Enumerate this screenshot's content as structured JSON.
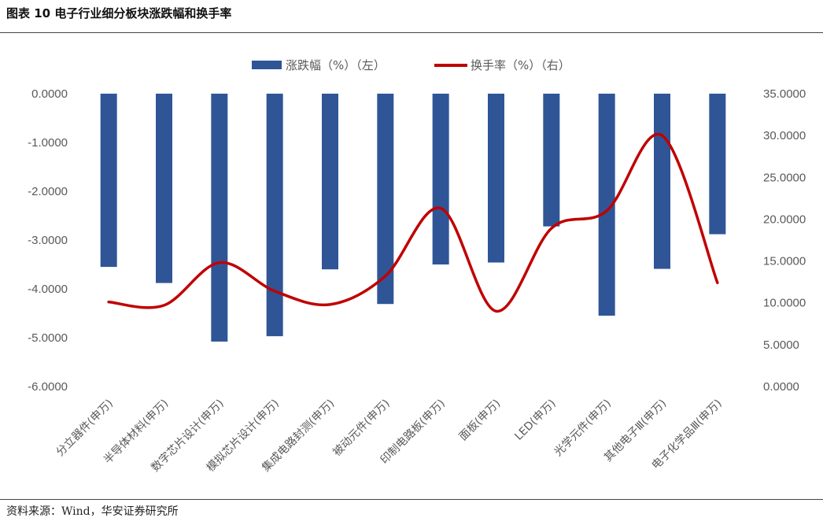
{
  "figure": {
    "title": "图表 10 电子行业细分板块涨跌幅和换手率",
    "source": "资料来源：Wind，华安证券研究所"
  },
  "chart_data": {
    "type": "bar+line",
    "categories": [
      "分立器件(申万)",
      "半导体材料(申万)",
      "数字芯片设计(申万)",
      "模拟芯片设计(申万)",
      "集成电路封测(申万)",
      "被动元件(申万)",
      "印制电路板(申万)",
      "面板(申万)",
      "LED(申万)",
      "光学元件(申万)",
      "其他电子Ⅲ(申万)",
      "电子化学品Ⅲ(申万)"
    ],
    "series": [
      {
        "name": "涨跌幅（%）（左）",
        "type": "bar",
        "axis": "left",
        "color": "#2F5597",
        "values": [
          -3.55,
          -3.88,
          -5.08,
          -4.97,
          -3.6,
          -4.31,
          -3.5,
          -3.46,
          -2.72,
          -4.55,
          -3.59,
          -2.88
        ]
      },
      {
        "name": "换手率（%）（右）",
        "type": "line",
        "axis": "right",
        "color": "#C00000",
        "values": [
          10.1,
          9.7,
          14.8,
          11.4,
          9.8,
          13.2,
          21.3,
          9.0,
          18.9,
          21.0,
          30.0,
          12.4
        ]
      }
    ],
    "yleft": {
      "min": -6,
      "max": 0,
      "ticks": [
        "0.0000",
        "-1.0000",
        "-2.0000",
        "-3.0000",
        "-4.0000",
        "-5.0000",
        "-6.0000"
      ]
    },
    "yright": {
      "min": 0,
      "max": 35,
      "ticks": [
        "35.0000",
        "30.0000",
        "25.0000",
        "20.0000",
        "15.0000",
        "10.0000",
        "5.0000",
        "0.0000"
      ]
    },
    "legend": "top-center",
    "grid": false
  }
}
